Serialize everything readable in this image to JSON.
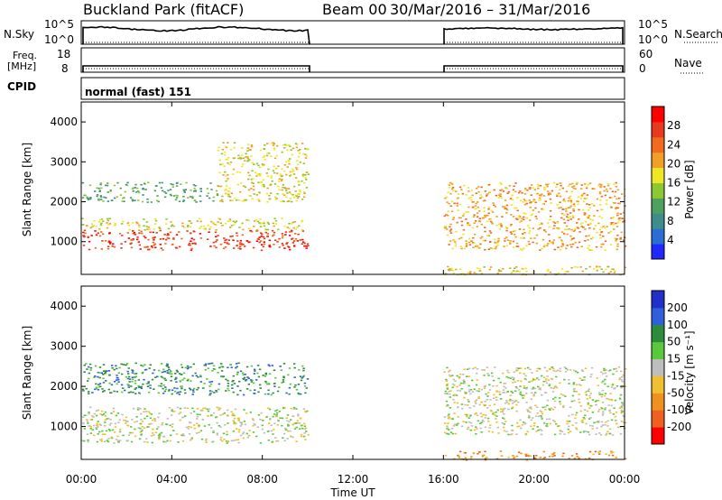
{
  "header": {
    "station": "Buckland Park (fitACF)",
    "beam": "Beam 00",
    "date_range": "30/Mar/2016 – 31/Mar/2016"
  },
  "strips": {
    "nsky_label": "N.Sky",
    "nsky_ticks": [
      "10^5",
      "10^0"
    ],
    "nsearch_label": "N.Search",
    "freq_label_1": "Freq.",
    "freq_label_2": "[MHz]",
    "freq_ticks": [
      "18",
      "8"
    ],
    "nave_label": "Nave",
    "nave_ticks": [
      "60",
      "0"
    ],
    "cpid_label": "CPID",
    "cpid_value": "normal (fast) 151"
  },
  "chart_data": [
    {
      "type": "heatmap",
      "quantity": "power",
      "ylabel": "Slant Range [km]",
      "xlabel": "Time UT",
      "x_ticks": [
        "00:00",
        "04:00",
        "08:00",
        "12:00",
        "16:00",
        "20:00",
        "00:00"
      ],
      "x_hours": [
        0,
        4,
        8,
        12,
        16,
        20,
        24
      ],
      "xlim_hours": [
        0,
        24
      ],
      "y_ticks": [
        1000,
        2000,
        3000,
        4000
      ],
      "ylim": [
        180,
        4500
      ],
      "colorbar": {
        "label": "Power [dB]",
        "ticks": [
          "4",
          "8",
          "12",
          "16",
          "20",
          "24",
          "28"
        ],
        "range": [
          0,
          32
        ],
        "colors": [
          "#1e28ff",
          "#2a6ed4",
          "#3e8c8c",
          "#4ea05e",
          "#8cc832",
          "#f0e628",
          "#f0a028",
          "#f06a20",
          "#e83a1c",
          "#ff0000"
        ]
      },
      "data_gaps_hours": [
        [
          10,
          16
        ]
      ],
      "echo_regions": [
        {
          "t_start": 0,
          "t_end": 10,
          "range_min": 800,
          "range_max": 1300,
          "power_db": 28
        },
        {
          "t_start": 0,
          "t_end": 10,
          "range_min": 1300,
          "range_max": 1600,
          "power_db": 18
        },
        {
          "t_start": 0,
          "t_end": 6,
          "range_min": 2000,
          "range_max": 2500,
          "power_db": 10
        },
        {
          "t_start": 6,
          "t_end": 10,
          "range_min": 2000,
          "range_max": 3500,
          "power_db": 16
        },
        {
          "t_start": 16,
          "t_end": 24,
          "range_min": 800,
          "range_max": 2500,
          "power_db": 22
        },
        {
          "t_start": 16,
          "t_end": 24,
          "range_min": 180,
          "range_max": 400,
          "power_db": 16
        }
      ]
    },
    {
      "type": "heatmap",
      "quantity": "velocity",
      "ylabel": "Slant Range [km]",
      "xlabel": "Time UT",
      "x_ticks": [
        "00:00",
        "04:00",
        "08:00",
        "12:00",
        "16:00",
        "20:00",
        "00:00"
      ],
      "x_hours": [
        0,
        4,
        8,
        12,
        16,
        20,
        24
      ],
      "xlim_hours": [
        0,
        24
      ],
      "y_ticks": [
        1000,
        2000,
        3000,
        4000
      ],
      "ylim": [
        180,
        4500
      ],
      "colorbar": {
        "label": "Velocity [m s⁻¹]",
        "ticks": [
          "200",
          "100",
          "50",
          "15",
          "-15",
          "-50",
          "-100",
          "-200"
        ],
        "colors": [
          "#2030c8",
          "#3060d8",
          "#2c8c3c",
          "#5ac83c",
          "#bebebe",
          "#f0c030",
          "#f09020",
          "#f06020",
          "#ff0000"
        ]
      },
      "data_gaps_hours": [
        [
          10,
          16
        ]
      ],
      "echo_regions": [
        {
          "t_start": 0,
          "t_end": 10,
          "range_min": 600,
          "range_max": 1500,
          "velocity": 0
        },
        {
          "t_start": 0,
          "t_end": 10,
          "range_min": 1800,
          "range_max": 2600,
          "velocity": 50
        },
        {
          "t_start": 16,
          "t_end": 24,
          "range_min": 800,
          "range_max": 2500,
          "velocity": 0
        },
        {
          "t_start": 16,
          "t_end": 24,
          "range_min": 180,
          "range_max": 400,
          "velocity": -50
        }
      ]
    }
  ]
}
